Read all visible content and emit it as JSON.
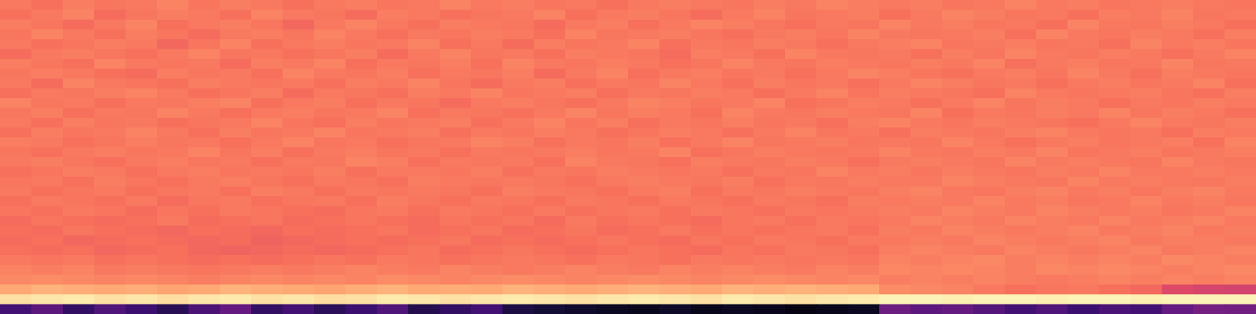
{
  "chart_data": {
    "type": "heatmap",
    "color": "magma",
    "zlim": [
      0,
      100
    ],
    "tick_labels": false,
    "cells": [
      [
        72,
        70,
        73,
        71,
        72,
        74,
        71,
        73,
        72,
        70,
        72,
        73,
        71,
        72,
        74,
        72,
        73,
        71,
        72,
        70,
        72,
        73,
        72,
        71,
        73,
        72,
        74,
        73,
        72,
        73,
        71,
        72,
        74,
        72,
        73,
        71,
        72,
        73,
        72,
        71
      ],
      [
        70,
        72,
        74,
        69,
        71,
        73,
        72,
        70,
        74,
        72,
        71,
        69,
        73,
        72,
        70,
        71,
        72,
        74,
        70,
        72,
        73,
        71,
        69,
        72,
        74,
        71,
        72,
        73,
        70,
        72,
        74,
        73,
        71,
        72,
        70,
        73,
        72,
        74,
        71,
        72
      ],
      [
        73,
        71,
        69,
        72,
        74,
        70,
        72,
        73,
        71,
        68,
        72,
        74,
        72,
        70,
        73,
        72,
        71,
        69,
        72,
        73,
        70,
        72,
        74,
        73,
        71,
        70,
        72,
        71,
        74,
        72,
        73,
        71,
        72,
        70,
        74,
        72,
        71,
        73,
        72,
        70
      ],
      [
        71,
        74,
        72,
        70,
        73,
        71,
        69,
        72,
        73,
        71,
        74,
        72,
        70,
        72,
        71,
        73,
        72,
        70,
        74,
        71,
        72,
        73,
        71,
        70,
        72,
        73,
        71,
        74,
        72,
        71,
        72,
        73,
        70,
        74,
        72,
        71,
        73,
        72,
        70,
        73
      ],
      [
        72,
        70,
        71,
        73,
        72,
        68,
        71,
        74,
        70,
        72,
        73,
        71,
        72,
        74,
        70,
        72,
        69,
        73,
        71,
        72,
        74,
        70,
        72,
        71,
        73,
        72,
        70,
        72,
        73,
        74,
        71,
        72,
        73,
        71,
        72,
        70,
        74,
        72,
        73,
        71
      ],
      [
        69,
        72,
        73,
        71,
        70,
        72,
        74,
        71,
        72,
        70,
        71,
        73,
        69,
        72,
        74,
        71,
        72,
        70,
        73,
        72,
        71,
        69,
        73,
        72,
        70,
        74,
        72,
        71,
        72,
        70,
        73,
        71,
        74,
        72,
        71,
        73,
        72,
        70,
        72,
        74
      ],
      [
        73,
        71,
        70,
        74,
        72,
        71,
        72,
        69,
        73,
        72,
        74,
        70,
        72,
        71,
        73,
        70,
        74,
        72,
        71,
        73,
        72,
        70,
        71,
        74,
        72,
        71,
        73,
        72,
        71,
        73,
        72,
        74,
        70,
        72,
        73,
        71,
        72,
        74,
        71,
        72
      ],
      [
        71,
        73,
        72,
        70,
        69,
        73,
        71,
        72,
        70,
        74,
        72,
        71,
        73,
        70,
        72,
        71,
        73,
        69,
        72,
        74,
        70,
        72,
        73,
        71,
        72,
        70,
        72,
        74,
        73,
        71,
        70,
        72,
        73,
        71,
        74,
        72,
        70,
        73,
        72,
        71
      ],
      [
        72,
        69,
        74,
        72,
        71,
        70,
        73,
        72,
        71,
        72,
        70,
        73,
        72,
        74,
        71,
        69,
        72,
        73,
        70,
        72,
        71,
        74,
        72,
        70,
        73,
        71,
        72,
        70,
        72,
        74,
        73,
        71,
        72,
        70,
        72,
        73,
        71,
        72,
        74,
        70
      ],
      [
        70,
        72,
        71,
        73,
        74,
        72,
        70,
        71,
        73,
        69,
        72,
        71,
        70,
        73,
        72,
        74,
        71,
        72,
        73,
        70,
        72,
        71,
        73,
        72,
        70,
        72,
        74,
        71,
        73,
        72,
        71,
        70,
        74,
        72,
        71,
        72,
        73,
        71,
        70,
        73
      ],
      [
        74,
        71,
        72,
        70,
        72,
        71,
        73,
        74,
        70,
        72,
        73,
        70,
        72,
        71,
        69,
        72,
        73,
        71,
        70,
        72,
        74,
        73,
        71,
        72,
        74,
        70,
        71,
        73,
        72,
        70,
        72,
        74,
        71,
        73,
        72,
        70,
        72,
        71,
        73,
        72
      ],
      [
        71,
        73,
        70,
        72,
        71,
        74,
        72,
        70,
        72,
        73,
        71,
        72,
        74,
        70,
        72,
        71,
        70,
        72,
        74,
        71,
        73,
        72,
        70,
        74,
        72,
        71,
        73,
        72,
        71,
        74,
        70,
        72,
        71,
        73,
        72,
        74,
        71,
        73,
        72,
        70
      ],
      [
        72,
        70,
        73,
        71,
        72,
        70,
        71,
        72,
        74,
        71,
        70,
        73,
        71,
        72,
        73,
        70,
        72,
        74,
        71,
        73,
        70,
        72,
        71,
        73,
        71,
        72,
        70,
        73,
        74,
        72,
        71,
        73,
        72,
        71,
        70,
        72,
        74,
        72,
        71,
        73
      ],
      [
        70,
        73,
        71,
        72,
        74,
        72,
        70,
        73,
        71,
        72,
        74,
        71,
        72,
        73,
        70,
        72,
        71,
        73,
        72,
        70,
        71,
        73,
        72,
        70,
        72,
        74,
        71,
        72,
        70,
        73,
        72,
        71,
        73,
        74,
        72,
        71,
        72,
        70,
        73,
        72
      ],
      [
        73,
        72,
        70,
        71,
        73,
        71,
        72,
        70,
        72,
        74,
        71,
        72,
        70,
        71,
        72,
        74,
        73,
        70,
        72,
        71,
        73,
        70,
        72,
        74,
        71,
        72,
        73,
        71,
        72,
        71,
        74,
        72,
        70,
        72,
        73,
        71,
        72,
        73,
        70,
        74
      ],
      [
        71,
        70,
        72,
        73,
        71,
        72,
        74,
        71,
        73,
        70,
        72,
        73,
        71,
        72,
        70,
        72,
        71,
        72,
        73,
        71,
        72,
        74,
        70,
        71,
        73,
        72,
        71,
        72,
        74,
        72,
        71,
        73,
        72,
        74,
        71,
        72,
        73,
        71,
        72,
        73
      ],
      [
        72,
        73,
        71,
        70,
        72,
        73,
        71,
        72,
        70,
        72,
        71,
        74,
        73,
        70,
        72,
        71,
        72,
        70,
        74,
        72,
        71,
        70,
        73,
        72,
        71,
        73,
        72,
        70,
        72,
        73,
        72,
        71,
        74,
        72,
        73,
        72,
        71,
        74,
        72,
        71
      ],
      [
        70,
        71,
        73,
        72,
        70,
        72,
        73,
        71,
        72,
        71,
        73,
        70,
        72,
        72,
        71,
        73,
        70,
        72,
        71,
        73,
        72,
        71,
        72,
        70,
        72,
        71,
        74,
        72,
        73,
        71,
        73,
        72,
        71,
        73,
        72,
        74,
        72,
        72,
        73,
        72
      ],
      [
        71,
        72,
        70,
        73,
        71,
        70,
        72,
        73,
        71,
        70,
        72,
        71,
        70,
        73,
        72,
        71,
        72,
        71,
        70,
        72,
        73,
        72,
        71,
        73,
        70,
        72,
        71,
        73,
        72,
        72,
        74,
        73,
        72,
        71,
        74,
        72,
        73,
        72,
        71,
        73
      ],
      [
        72,
        70,
        71,
        72,
        70,
        71,
        72,
        70,
        73,
        72,
        70,
        72,
        71,
        72,
        71,
        70,
        73,
        72,
        71,
        70,
        72,
        73,
        70,
        72,
        71,
        73,
        72,
        71,
        73,
        74,
        72,
        71,
        73,
        74,
        72,
        73,
        71,
        73,
        74,
        72
      ],
      [
        70,
        72,
        71,
        70,
        72,
        69,
        71,
        72,
        70,
        71,
        72,
        70,
        73,
        71,
        70,
        72,
        71,
        70,
        72,
        71,
        70,
        72,
        71,
        70,
        72,
        71,
        70,
        73,
        72,
        73,
        72,
        74,
        72,
        73,
        71,
        72,
        74,
        72,
        73,
        71
      ],
      [
        71,
        70,
        72,
        71,
        69,
        71,
        70,
        72,
        71,
        70,
        69,
        71,
        72,
        70,
        72,
        71,
        70,
        72,
        70,
        71,
        72,
        70,
        72,
        71,
        70,
        72,
        71,
        72,
        73,
        72,
        74,
        73,
        72,
        74,
        73,
        72,
        73,
        71,
        72,
        74
      ],
      [
        69,
        71,
        70,
        69,
        70,
        72,
        69,
        70,
        71,
        69,
        70,
        71,
        70,
        69,
        71,
        70,
        71,
        69,
        72,
        70,
        71,
        70,
        69,
        71,
        72,
        70,
        72,
        71,
        72,
        74,
        73,
        72,
        74,
        73,
        72,
        74,
        72,
        73,
        74,
        72
      ],
      [
        70,
        69,
        71,
        70,
        69,
        68,
        70,
        69,
        68,
        70,
        69,
        70,
        71,
        69,
        70,
        71,
        69,
        70,
        71,
        69,
        70,
        72,
        70,
        71,
        70,
        71,
        72,
        70,
        73,
        72,
        74,
        73,
        72,
        73,
        74,
        72,
        73,
        74,
        72,
        73
      ],
      [
        69,
        70,
        68,
        69,
        70,
        69,
        68,
        69,
        67,
        68,
        69,
        70,
        69,
        70,
        71,
        69,
        70,
        69,
        70,
        71,
        70,
        69,
        71,
        70,
        72,
        71,
        70,
        72,
        72,
        73,
        72,
        74,
        73,
        72,
        73,
        74,
        72,
        73,
        73,
        72
      ],
      [
        70,
        69,
        70,
        68,
        69,
        70,
        68,
        67,
        68,
        69,
        68,
        69,
        70,
        71,
        69,
        70,
        71,
        70,
        69,
        70,
        71,
        70,
        69,
        71,
        70,
        72,
        71,
        70,
        73,
        74,
        73,
        72,
        74,
        73,
        72,
        73,
        74,
        72,
        73,
        74
      ],
      [
        72,
        71,
        72,
        70,
        71,
        70,
        69,
        70,
        69,
        70,
        71,
        70,
        72,
        71,
        70,
        71,
        72,
        71,
        70,
        72,
        71,
        70,
        72,
        71,
        72,
        71,
        72,
        71,
        74,
        73,
        74,
        75,
        73,
        74,
        73,
        74,
        73,
        75,
        74,
        73
      ],
      [
        74,
        73,
        74,
        72,
        73,
        72,
        71,
        72,
        73,
        72,
        73,
        74,
        73,
        72,
        74,
        73,
        72,
        73,
        74,
        73,
        72,
        74,
        73,
        74,
        73,
        72,
        74,
        73,
        75,
        74,
        75,
        74,
        73,
        75,
        74,
        75,
        74,
        73,
        74,
        75
      ],
      [
        75,
        76,
        75,
        74,
        75,
        74,
        73,
        74,
        75,
        74,
        75,
        74,
        76,
        75,
        74,
        75,
        76,
        75,
        74,
        75,
        76,
        75,
        74,
        75,
        76,
        75,
        74,
        75,
        73,
        74,
        73,
        74,
        73,
        72,
        73,
        74,
        73,
        74,
        73,
        74
      ],
      [
        82,
        84,
        83,
        82,
        83,
        81,
        82,
        84,
        83,
        82,
        81,
        83,
        84,
        82,
        83,
        82,
        84,
        83,
        82,
        83,
        84,
        83,
        82,
        84,
        83,
        84,
        83,
        82,
        76,
        75,
        74,
        72,
        70,
        71,
        72,
        70,
        68,
        60,
        58,
        57
      ],
      [
        94,
        95,
        96,
        94,
        95,
        93,
        95,
        96,
        94,
        95,
        93,
        94,
        96,
        95,
        94,
        95,
        96,
        95,
        94,
        95,
        96,
        95,
        94,
        96,
        95,
        94,
        95,
        96,
        98,
        98,
        97,
        98,
        98,
        97,
        98,
        98,
        97,
        98,
        98,
        98
      ],
      [
        22,
        28,
        18,
        25,
        20,
        15,
        24,
        30,
        18,
        22,
        16,
        20,
        25,
        14,
        18,
        22,
        12,
        10,
        8,
        6,
        5,
        7,
        4,
        6,
        5,
        3,
        4,
        6,
        32,
        28,
        30,
        26,
        22,
        25,
        20,
        24,
        22,
        30,
        34,
        33
      ]
    ]
  }
}
